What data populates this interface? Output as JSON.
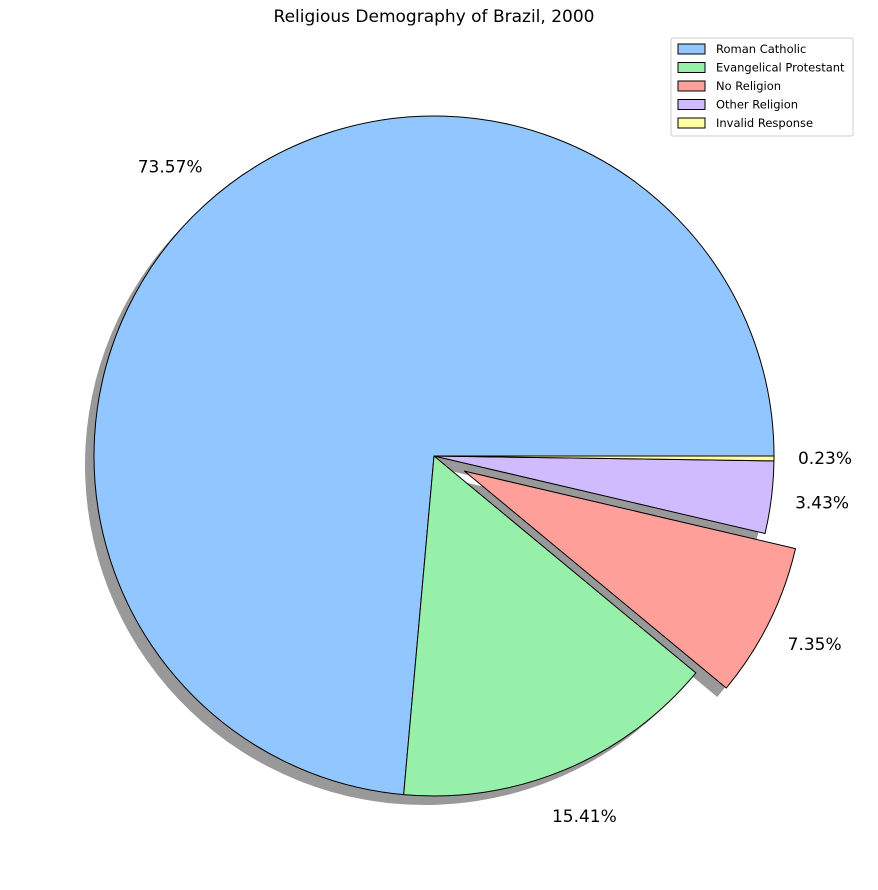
{
  "chart_data": {
    "type": "pie",
    "title": "Religious Demography of Brazil, 2000",
    "categories": [
      "Roman Catholic",
      "Evangelical Protestant",
      "No Religion",
      "Other Religion",
      "Invalid Response"
    ],
    "values": [
      73.57,
      15.41,
      7.35,
      3.43,
      0.23
    ],
    "labels": [
      "73.57%",
      "15.41%",
      "7.35%",
      "3.43%",
      "0.23%"
    ],
    "colors": [
      "#92c6ff",
      "#97f0aa",
      "#ff9f9a",
      "#d0bbff",
      "#fffea3"
    ],
    "exploded": [
      "No Religion"
    ],
    "start_angle_deg": 0,
    "direction": "counterclockwise",
    "shadow": true,
    "legend": {
      "placement": "top-right"
    }
  }
}
